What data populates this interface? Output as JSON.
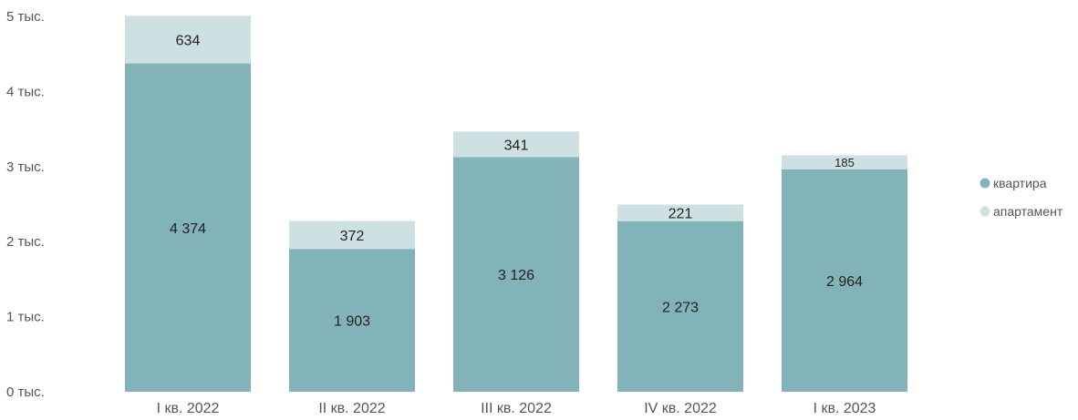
{
  "chart_data": {
    "type": "bar",
    "stacked": true,
    "categories": [
      "I кв. 2022",
      "II кв. 2022",
      "III кв. 2022",
      "IV кв. 2022",
      "I кв. 2023"
    ],
    "series": [
      {
        "name": "квартира",
        "color": "#82b3b8",
        "values": [
          4374,
          1903,
          3126,
          2273,
          2964
        ],
        "labels": [
          "4 374",
          "1 903",
          "3 126",
          "2 273",
          "2 964"
        ]
      },
      {
        "name": "апартамент",
        "color": "#cde0e2",
        "values": [
          634,
          372,
          341,
          221,
          185
        ],
        "labels": [
          "634",
          "372",
          "341",
          "221",
          "185"
        ]
      }
    ],
    "ylim": [
      0,
      5000
    ],
    "yticks": [
      0,
      1000,
      2000,
      3000,
      4000,
      5000
    ],
    "ytick_labels": [
      "0 тыс.",
      "1 тыс.",
      "2 тыс.",
      "3 тыс.",
      "4 тыс.",
      "5 тыс."
    ],
    "grid": false,
    "legend_position": "right"
  }
}
